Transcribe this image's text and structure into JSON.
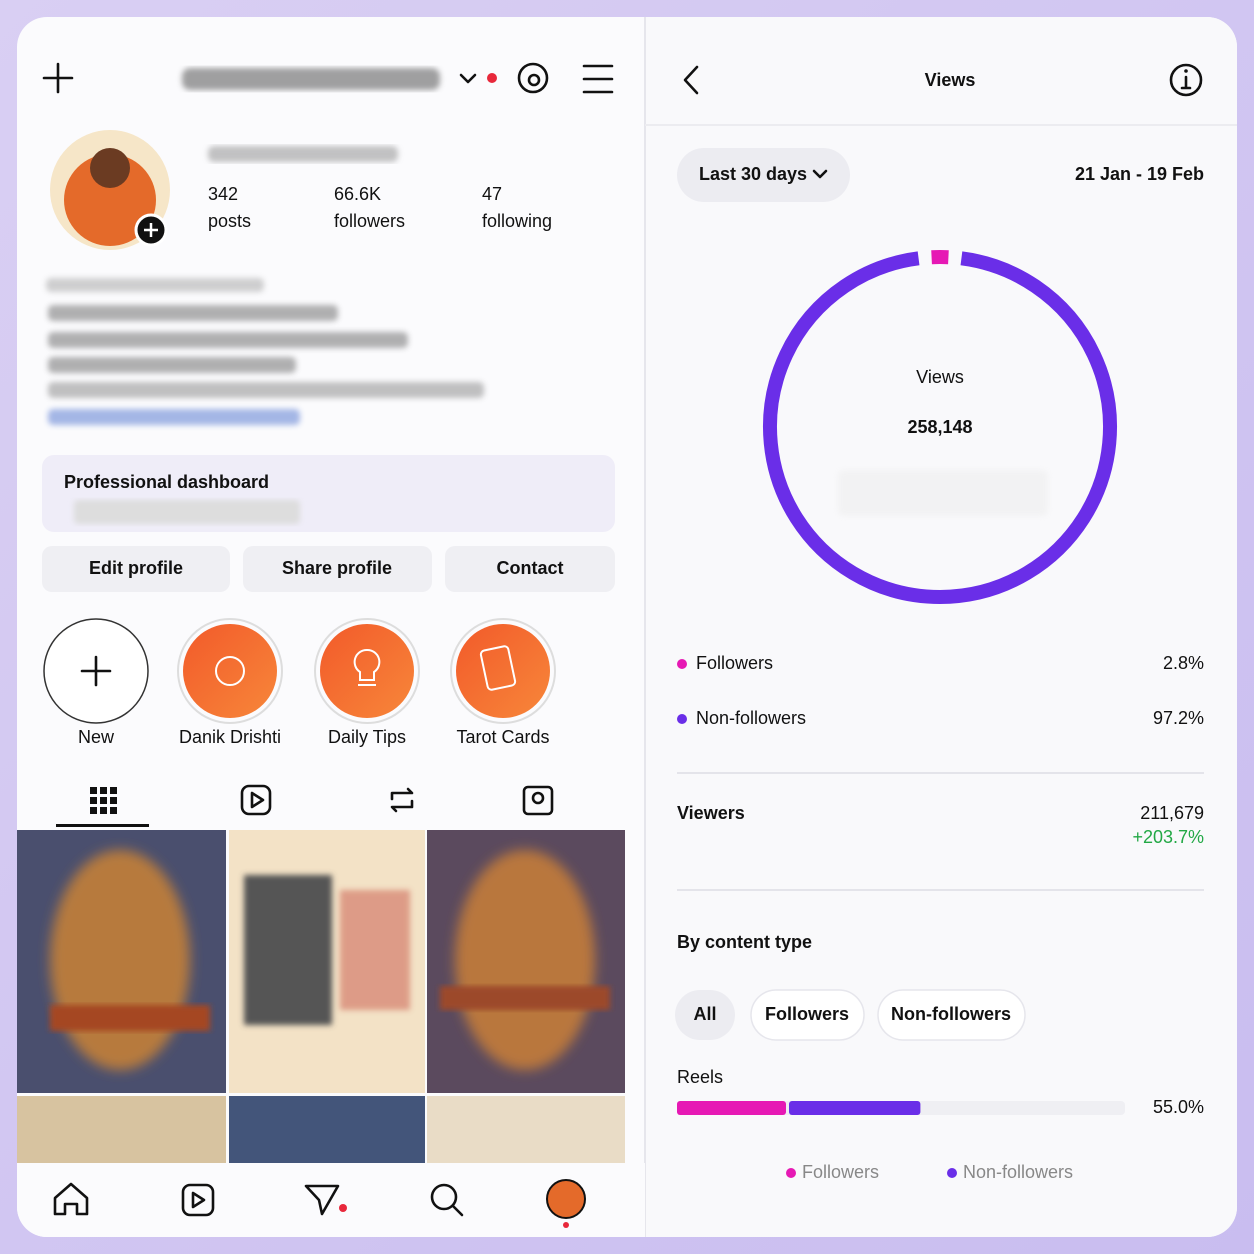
{
  "profile": {
    "stats": [
      {
        "value": "342",
        "label": "posts"
      },
      {
        "value": "66.6K",
        "label": "followers"
      },
      {
        "value": "47",
        "label": "following"
      }
    ],
    "dashboard": "Professional dashboard",
    "buttons": [
      "Edit profile",
      "Share profile",
      "Contact"
    ],
    "highlights": [
      "New",
      "Danik Drishti",
      "Daily Tips",
      "Tarot Cards"
    ]
  },
  "insights": {
    "title": "Views",
    "period": "Last 30 days",
    "date_range": "21 Jan - 19 Feb",
    "total_label": "Views",
    "total": "258,148",
    "breakdown": [
      {
        "name": "Followers",
        "value": 2.8,
        "value_label": "2.8%",
        "color": "#e619b4"
      },
      {
        "name": "Non-followers",
        "value": 97.2,
        "value_label": "97.2%",
        "color": "#6a2ee8"
      }
    ],
    "viewers_label": "Viewers",
    "viewers": "211,679",
    "viewers_change": "+203.7%",
    "content_title": "By content type",
    "filters": [
      "All",
      "Followers",
      "Non-followers"
    ],
    "content": [
      {
        "name": "Reels",
        "value": 55.0,
        "value_label": "55.0%",
        "values": [
          25,
          30
        ]
      }
    ],
    "legend": [
      "Followers",
      "Non-followers"
    ]
  }
}
